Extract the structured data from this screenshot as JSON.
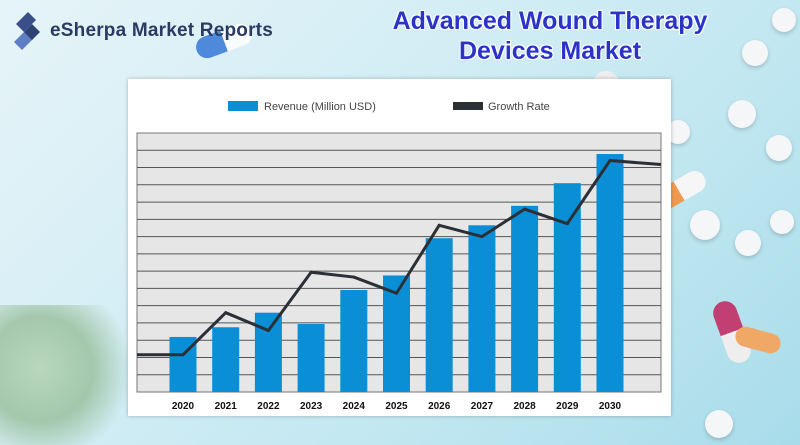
{
  "brand": {
    "name": "eSherpa Market Reports"
  },
  "title_lines": [
    "Advanced Wound Therapy",
    "Devices Market"
  ],
  "colors": {
    "bar": "#0a8fd6",
    "line": "#2b3036",
    "title": "#2b34c7",
    "plot_bg": "#e6e6e6"
  },
  "chart_data": {
    "type": "bar",
    "categories": [
      "2020",
      "2021",
      "2022",
      "2023",
      "2024",
      "2025",
      "2026",
      "2027",
      "2028",
      "2029",
      "2030"
    ],
    "series": [
      {
        "name": "Revenue (Million USD)",
        "type": "bar",
        "values": [
          3.4,
          4.0,
          4.9,
          4.2,
          6.3,
          7.2,
          9.5,
          10.3,
          11.5,
          12.9,
          14.7
        ]
      },
      {
        "name": "Growth Rate",
        "type": "line",
        "values": [
          2.3,
          4.9,
          3.8,
          7.4,
          7.1,
          6.1,
          10.3,
          9.6,
          11.3,
          10.4,
          14.3
        ]
      }
    ],
    "ylim": [
      0,
      16
    ],
    "grid": true,
    "legend": "top"
  }
}
